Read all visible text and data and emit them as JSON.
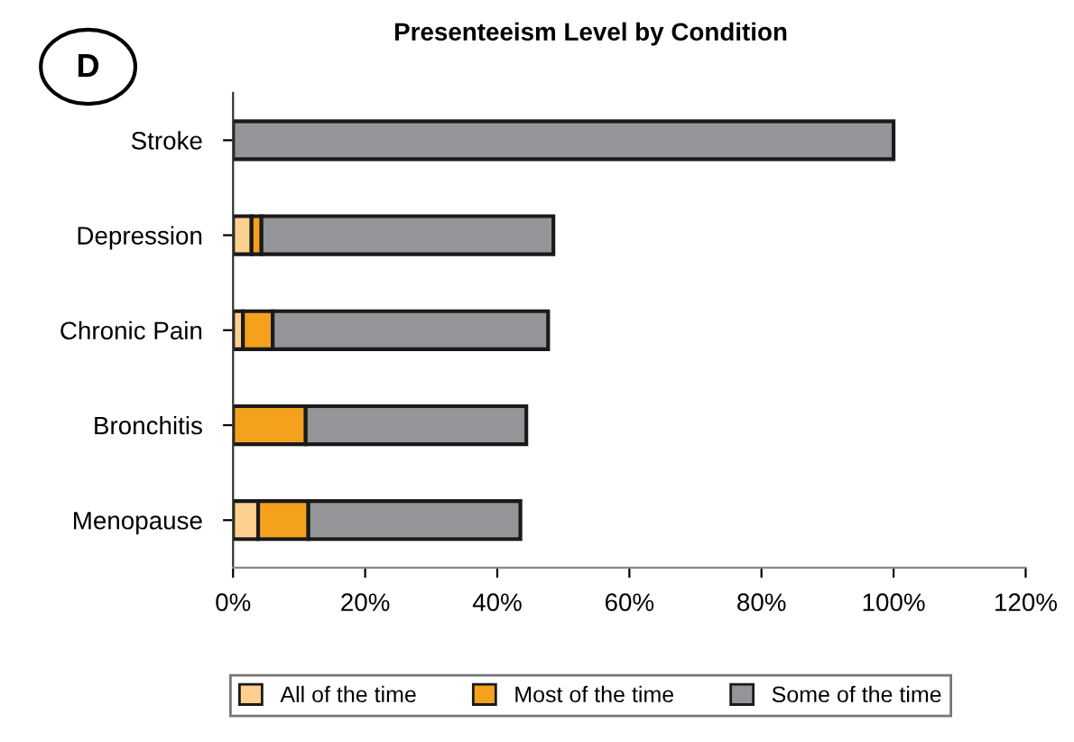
{
  "chart_data": {
    "type": "bar",
    "orientation": "horizontal",
    "stacked": true,
    "title": "Presenteeism Level by Condition",
    "annotations": [
      "D"
    ],
    "categories": [
      "Stroke",
      "Depression",
      "Chronic Pain",
      "Bronchitis",
      "Menopause"
    ],
    "series": [
      {
        "name": "All of the time",
        "color": "#fdd08f",
        "values": [
          0,
          2.8,
          1.5,
          0,
          3.8
        ]
      },
      {
        "name": "Most of the time",
        "color": "#f4a11d",
        "values": [
          0,
          1.5,
          4.5,
          11.0,
          7.6
        ]
      },
      {
        "name": "Some of the time",
        "color": "#939598",
        "values": [
          100,
          44.2,
          41.7,
          33.4,
          32.1
        ]
      }
    ],
    "xlim": [
      0,
      120
    ],
    "xticks": [
      {
        "value": 0,
        "label": "0%"
      },
      {
        "value": 20,
        "label": "20%"
      },
      {
        "value": 40,
        "label": "40%"
      },
      {
        "value": 60,
        "label": "60%"
      },
      {
        "value": 80,
        "label": "80%"
      },
      {
        "value": 100,
        "label": "100%"
      },
      {
        "value": 120,
        "label": "120%"
      }
    ],
    "grid": false,
    "legend": "bottom"
  }
}
